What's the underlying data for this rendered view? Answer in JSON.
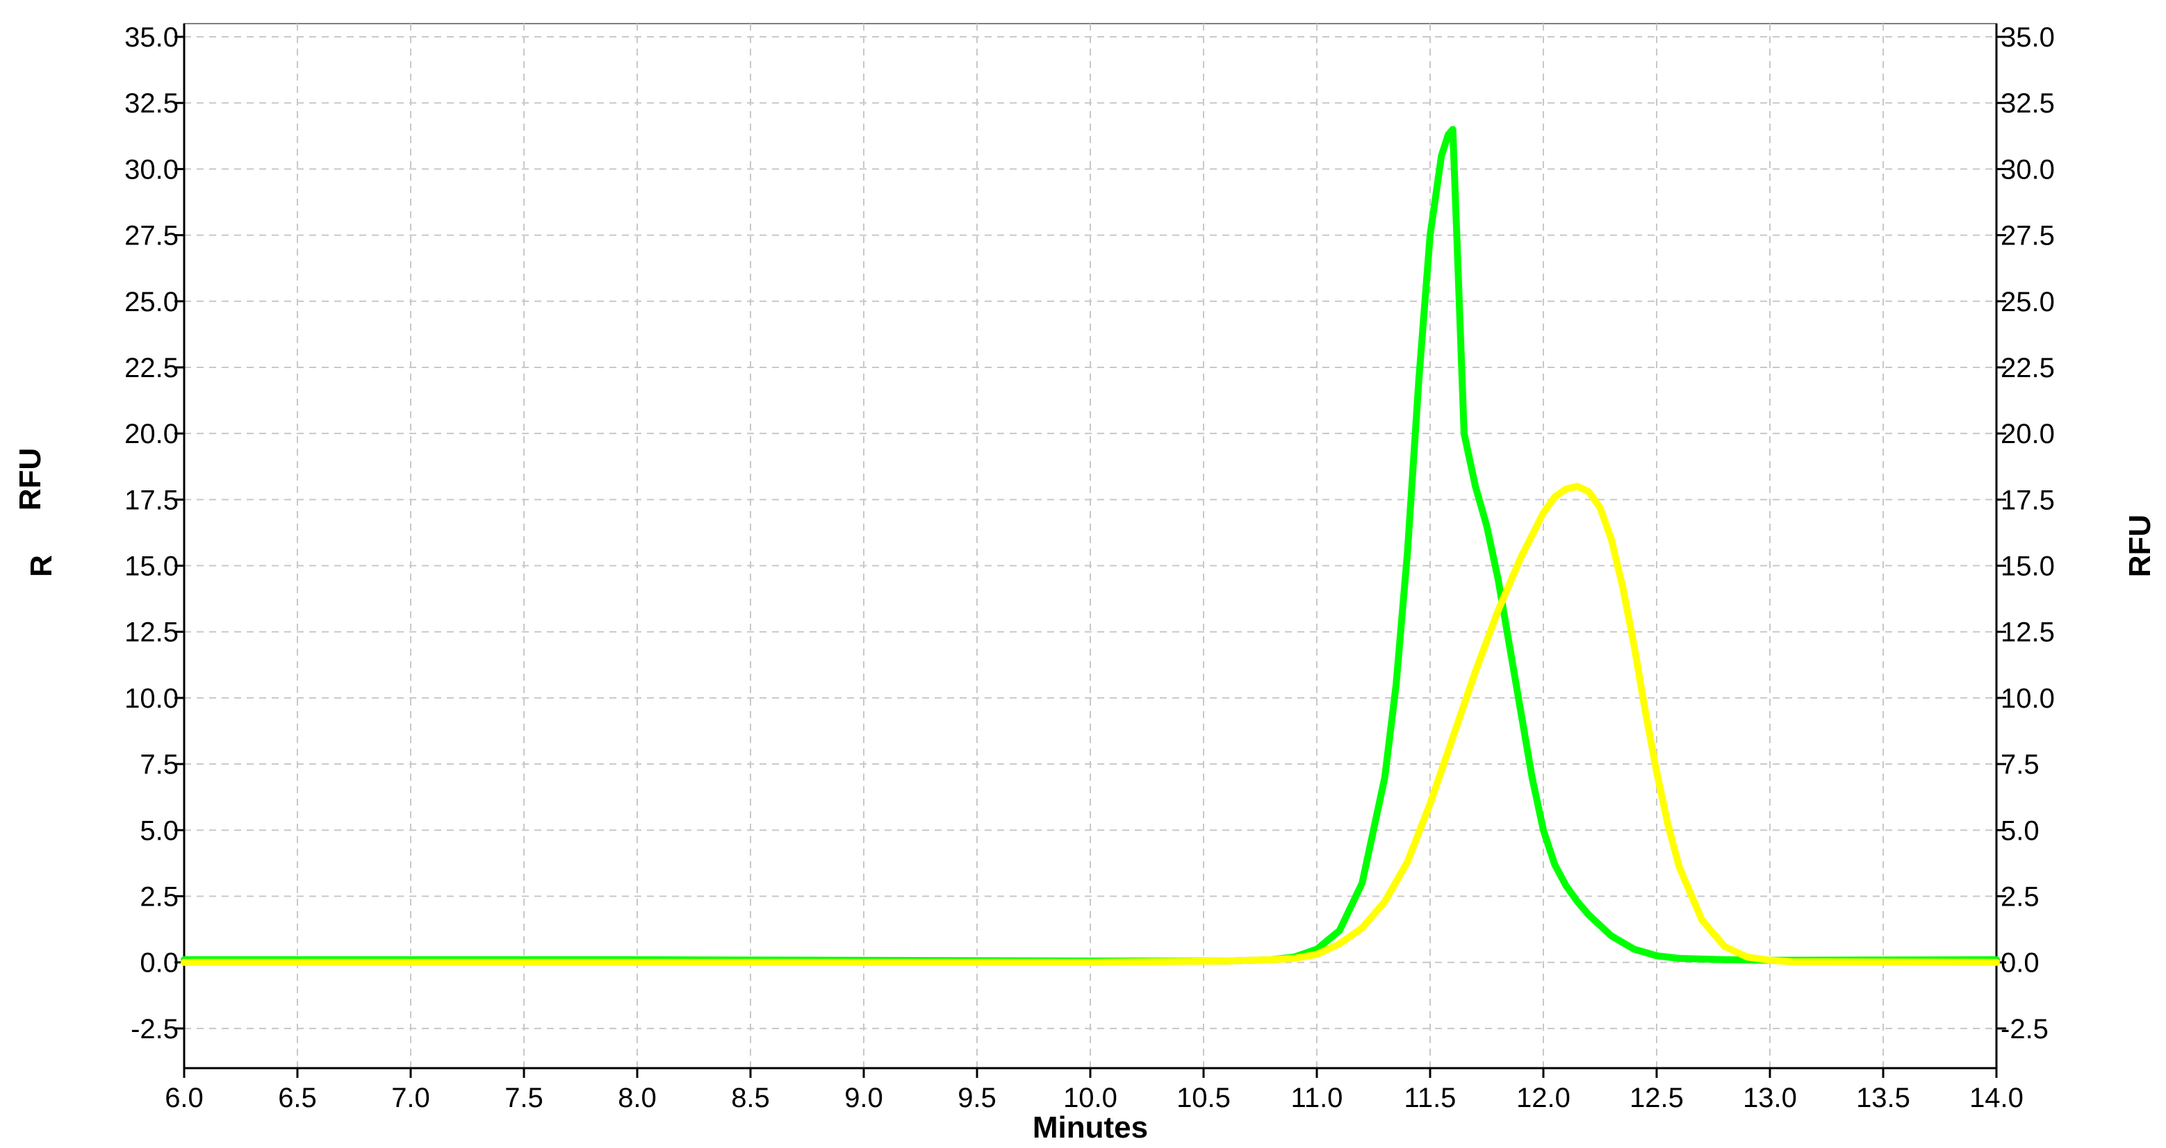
{
  "chart_data": {
    "type": "line",
    "xlabel": "Minutes",
    "ylabel_left": "RFU",
    "ylabel_left_stub": "R",
    "ylabel_right": "RFU",
    "xlim": [
      6.0,
      14.0
    ],
    "ylim": [
      -4.0,
      35.5
    ],
    "grid": true,
    "x_ticks": [
      "6.0",
      "6.5",
      "7.0",
      "7.5",
      "8.0",
      "8.5",
      "9.0",
      "9.5",
      "10.0",
      "10.5",
      "11.0",
      "11.5",
      "12.0",
      "12.5",
      "13.0",
      "13.5",
      "14.0"
    ],
    "y_ticks": [
      "-2.5",
      "0.0",
      "2.5",
      "5.0",
      "7.5",
      "10.0",
      "12.5",
      "15.0",
      "17.5",
      "20.0",
      "22.5",
      "25.0",
      "27.5",
      "30.0",
      "32.5",
      "35.0"
    ],
    "series": [
      {
        "color": "#00ff00",
        "x": [
          6.0,
          8.0,
          10.0,
          10.6,
          10.8,
          10.9,
          11.0,
          11.1,
          11.2,
          11.3,
          11.35,
          11.4,
          11.45,
          11.5,
          11.55,
          11.58,
          11.6,
          11.62,
          11.65,
          11.7,
          11.75,
          11.8,
          11.85,
          11.9,
          11.95,
          12.0,
          12.05,
          12.1,
          12.15,
          12.2,
          12.3,
          12.4,
          12.5,
          12.6,
          12.8,
          13.0,
          14.0
        ],
        "y": [
          0.1,
          0.1,
          0.05,
          0.05,
          0.1,
          0.2,
          0.5,
          1.2,
          3.0,
          7.0,
          10.5,
          15.5,
          22.0,
          27.5,
          30.5,
          31.3,
          31.5,
          27.0,
          20.0,
          18.0,
          16.5,
          14.5,
          12.0,
          9.5,
          7.0,
          5.0,
          3.7,
          2.9,
          2.3,
          1.8,
          1.0,
          0.5,
          0.25,
          0.15,
          0.1,
          0.08,
          0.1
        ]
      },
      {
        "color": "#ffff00",
        "x": [
          6.0,
          8.0,
          10.0,
          10.6,
          10.8,
          10.9,
          11.0,
          11.1,
          11.2,
          11.3,
          11.4,
          11.5,
          11.6,
          11.7,
          11.8,
          11.9,
          12.0,
          12.05,
          12.1,
          12.15,
          12.2,
          12.25,
          12.3,
          12.35,
          12.4,
          12.45,
          12.5,
          12.55,
          12.6,
          12.7,
          12.8,
          12.9,
          13.0,
          13.1,
          14.0
        ],
        "y": [
          0.0,
          0.0,
          0.0,
          0.05,
          0.1,
          0.15,
          0.3,
          0.7,
          1.3,
          2.3,
          3.8,
          6.0,
          8.5,
          11.0,
          13.3,
          15.3,
          17.0,
          17.6,
          17.9,
          18.0,
          17.8,
          17.2,
          16.0,
          14.2,
          12.0,
          9.5,
          7.2,
          5.2,
          3.6,
          1.6,
          0.6,
          0.2,
          0.08,
          0.02,
          0.0
        ]
      }
    ]
  }
}
